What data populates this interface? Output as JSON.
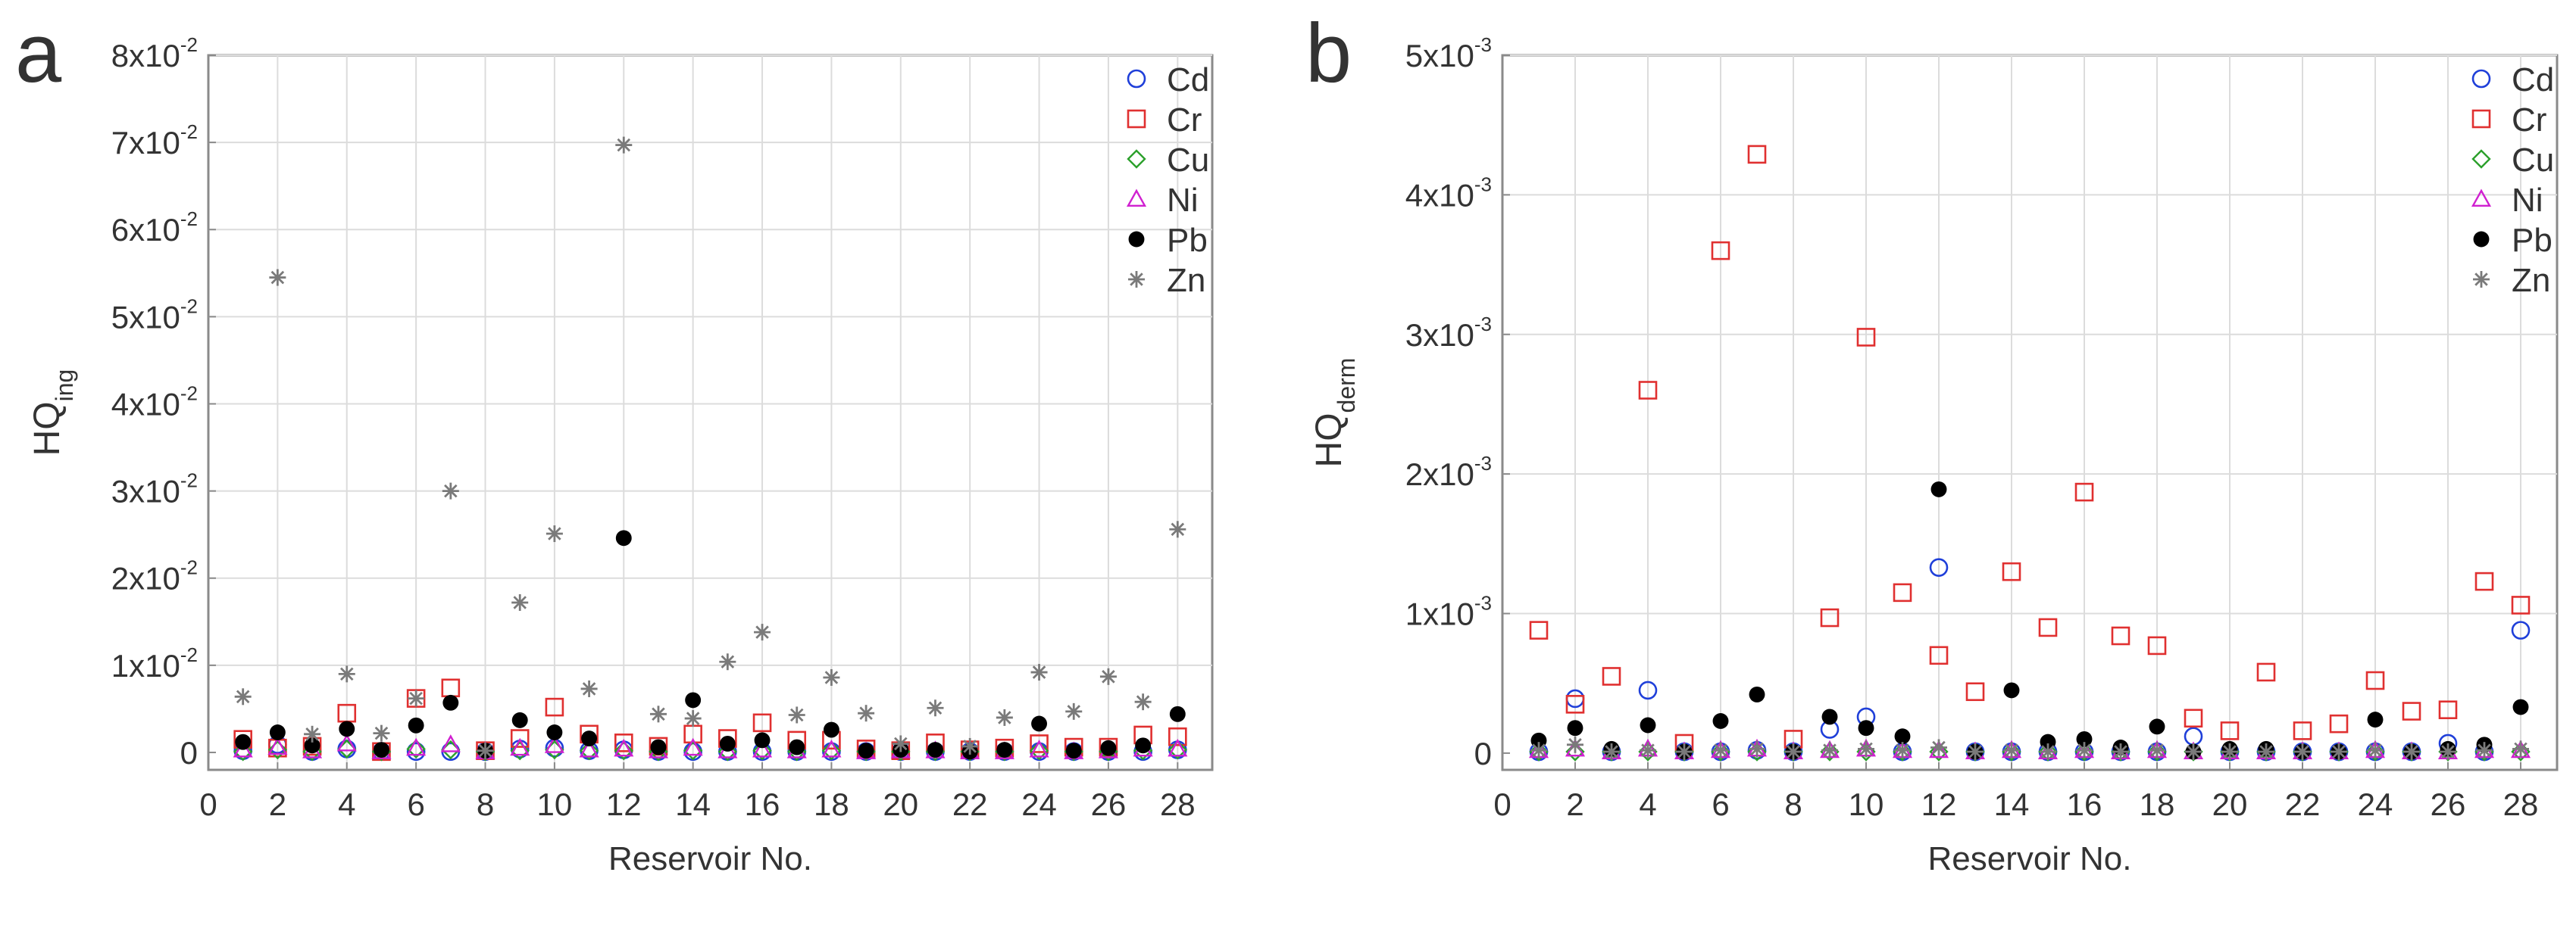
{
  "chart_data": [
    {
      "panel_letter": "a",
      "type": "scatter",
      "xlabel": "Reservoir No.",
      "ylabel_main": "HQ",
      "ylabel_sub": "ing",
      "xlim": [
        0,
        29
      ],
      "ylim": [
        -0.002,
        0.08
      ],
      "xticks": [
        0,
        2,
        4,
        6,
        8,
        10,
        12,
        14,
        16,
        18,
        20,
        22,
        24,
        26,
        28
      ],
      "yticks": [
        {
          "value": 0,
          "mantissa": "0",
          "exp": ""
        },
        {
          "value": 0.01,
          "mantissa": "1x10",
          "exp": "-2"
        },
        {
          "value": 0.02,
          "mantissa": "2x10",
          "exp": "-2"
        },
        {
          "value": 0.03,
          "mantissa": "3x10",
          "exp": "-2"
        },
        {
          "value": 0.04,
          "mantissa": "4x10",
          "exp": "-2"
        },
        {
          "value": 0.05,
          "mantissa": "5x10",
          "exp": "-2"
        },
        {
          "value": 0.06,
          "mantissa": "6x10",
          "exp": "-2"
        },
        {
          "value": 0.07,
          "mantissa": "7x10",
          "exp": "-2"
        },
        {
          "value": 0.08,
          "mantissa": "8x10",
          "exp": "-2"
        }
      ],
      "x": [
        1,
        2,
        3,
        4,
        5,
        6,
        7,
        8,
        9,
        10,
        11,
        12,
        13,
        14,
        15,
        16,
        17,
        18,
        19,
        20,
        21,
        22,
        23,
        24,
        25,
        26,
        27,
        28
      ],
      "series": [
        {
          "name": "Cd",
          "marker": "circle",
          "color": "#1f3fd9",
          "values": [
            0.0002,
            0.0009,
            0.0001,
            0.0004,
            0.0001,
            0.0001,
            0.0001,
            0.0001,
            0.0004,
            0.0005,
            0.0002,
            0.0003,
            0.0001,
            0.0001,
            0.0001,
            0.0001,
            0.0001,
            0.0001,
            0.0001,
            0.0001,
            0.0001,
            0.0001,
            0.0001,
            0.0001,
            0.0001,
            0.0001,
            0.0001,
            0.0003
          ]
        },
        {
          "name": "Cr",
          "marker": "square",
          "color": "#e03030",
          "values": [
            0.0015,
            0.0005,
            0.0007,
            0.0045,
            0.0001,
            0.0062,
            0.0074,
            0.0002,
            0.0016,
            0.0052,
            0.0021,
            0.0011,
            0.0007,
            0.0021,
            0.0016,
            0.0034,
            0.0014,
            0.0014,
            0.0004,
            0.0002,
            0.0011,
            0.0003,
            0.0005,
            0.001,
            0.0006,
            0.0006,
            0.002,
            0.0018
          ]
        },
        {
          "name": "Cu",
          "marker": "diamond",
          "color": "#2ca02c",
          "values": [
            0.0001,
            0.0003,
            0.0001,
            0.0004,
            0.0001,
            0.0004,
            0.0003,
            0.0001,
            0.0002,
            0.0003,
            0.0002,
            0.0002,
            0.0001,
            0.0002,
            0.0001,
            0.0002,
            0.0001,
            0.0002,
            0.0001,
            0.0001,
            0.0001,
            0.0001,
            0.0001,
            0.0002,
            0.0001,
            0.0001,
            0.0002,
            0.0003
          ]
        },
        {
          "name": "Ni",
          "marker": "triangle",
          "color": "#d020d0",
          "values": [
            0.0003,
            0.0006,
            0.0002,
            0.001,
            0.0001,
            0.0005,
            0.0009,
            0.0001,
            0.0005,
            0.0008,
            0.0003,
            0.0004,
            0.0002,
            0.0005,
            0.0002,
            0.0003,
            0.0002,
            0.0003,
            0.0001,
            0.0002,
            0.0002,
            0.0001,
            0.0001,
            0.0003,
            0.0001,
            0.0002,
            0.0004,
            0.0004
          ]
        },
        {
          "name": "Pb",
          "marker": "dot",
          "color": "#000000",
          "values": [
            0.0012,
            0.0023,
            0.0008,
            0.0027,
            0.0003,
            0.0031,
            0.0057,
            0.0002,
            0.0037,
            0.0023,
            0.0016,
            0.0246,
            0.0006,
            0.006,
            0.001,
            0.0014,
            0.0006,
            0.0026,
            0.0002,
            0.0003,
            0.0003,
            0.0001,
            0.0003,
            0.0033,
            0.0002,
            0.0005,
            0.0008,
            0.0044
          ]
        },
        {
          "name": "Zn",
          "marker": "star",
          "color": "#7a7a7a",
          "values": [
            0.0064,
            0.0545,
            0.0021,
            0.009,
            0.0022,
            0.0062,
            0.03,
            0.0002,
            0.0172,
            0.0251,
            0.0073,
            0.0697,
            0.0044,
            0.0039,
            0.0104,
            0.0138,
            0.0043,
            0.0086,
            0.0045,
            0.001,
            0.0051,
            0.0007,
            0.004,
            0.0092,
            0.0047,
            0.0087,
            0.0058,
            0.0256
          ]
        }
      ]
    },
    {
      "panel_letter": "b",
      "type": "scatter",
      "xlabel": "Reservoir No.",
      "ylabel_main": "HQ",
      "ylabel_sub": "derm",
      "xlim": [
        0,
        29
      ],
      "ylim": [
        -0.00012,
        0.005
      ],
      "xticks": [
        0,
        2,
        4,
        6,
        8,
        10,
        12,
        14,
        16,
        18,
        20,
        22,
        24,
        26,
        28
      ],
      "yticks": [
        {
          "value": 0,
          "mantissa": "0",
          "exp": ""
        },
        {
          "value": 0.001,
          "mantissa": "1x10",
          "exp": "-3"
        },
        {
          "value": 0.002,
          "mantissa": "2x10",
          "exp": "-3"
        },
        {
          "value": 0.003,
          "mantissa": "3x10",
          "exp": "-3"
        },
        {
          "value": 0.004,
          "mantissa": "4x10",
          "exp": "-3"
        },
        {
          "value": 0.005,
          "mantissa": "5x10",
          "exp": "-3"
        }
      ],
      "x": [
        1,
        2,
        3,
        4,
        5,
        6,
        7,
        8,
        9,
        10,
        11,
        12,
        13,
        14,
        15,
        16,
        17,
        18,
        19,
        20,
        21,
        22,
        23,
        24,
        25,
        26,
        27,
        28
      ],
      "series": [
        {
          "name": "Cd",
          "marker": "circle",
          "color": "#1f3fd9",
          "values": [
            1e-05,
            0.00039,
            1e-05,
            0.00045,
            1e-05,
            1e-05,
            2e-05,
            1e-05,
            0.00017,
            0.00026,
            1e-05,
            0.00133,
            1e-05,
            1e-05,
            1e-05,
            1e-05,
            1e-05,
            1e-05,
            0.00012,
            1e-05,
            1e-05,
            1e-05,
            1e-05,
            1e-05,
            1e-05,
            7e-05,
            1e-05,
            0.00088
          ]
        },
        {
          "name": "Cr",
          "marker": "square",
          "color": "#e03030",
          "values": [
            0.00088,
            0.00035,
            0.00055,
            0.0026,
            7e-05,
            0.0036,
            0.00429,
            0.0001,
            0.00097,
            0.00298,
            0.00115,
            0.0007,
            0.00044,
            0.0013,
            0.0009,
            0.00187,
            0.00084,
            0.00077,
            0.00025,
            0.00016,
            0.00058,
            0.00016,
            0.00021,
            0.00052,
            0.0003,
            0.00031,
            0.00123,
            0.00106
          ]
        },
        {
          "name": "Cu",
          "marker": "diamond",
          "color": "#2ca02c",
          "values": [
            1e-05,
            1e-05,
            1e-05,
            1e-05,
            1e-05,
            1e-05,
            1e-05,
            1e-05,
            1e-05,
            1e-05,
            1e-05,
            1e-05,
            1e-05,
            1e-05,
            1e-05,
            1e-05,
            1e-05,
            1e-05,
            1e-05,
            1e-05,
            1e-05,
            1e-05,
            1e-05,
            1e-05,
            1e-05,
            1e-05,
            1e-05,
            1e-05
          ]
        },
        {
          "name": "Ni",
          "marker": "triangle",
          "color": "#d020d0",
          "values": [
            2e-05,
            3e-05,
            1e-05,
            3e-05,
            1e-05,
            2e-05,
            3e-05,
            1e-05,
            2e-05,
            3e-05,
            2e-05,
            2e-05,
            1e-05,
            2e-05,
            1e-05,
            2e-05,
            1e-05,
            2e-05,
            1e-05,
            1e-05,
            1e-05,
            1e-05,
            1e-05,
            2e-05,
            1e-05,
            1e-05,
            2e-05,
            2e-05
          ]
        },
        {
          "name": "Pb",
          "marker": "dot",
          "color": "#000000",
          "values": [
            9e-05,
            0.00018,
            3e-05,
            0.0002,
            1e-05,
            0.00023,
            0.00042,
            1e-05,
            0.00026,
            0.00018,
            0.00012,
            0.00189,
            1e-05,
            0.00045,
            8e-05,
            0.0001,
            4e-05,
            0.00019,
            1e-05,
            3e-05,
            3e-05,
            1e-05,
            1e-05,
            0.00024,
            1e-05,
            3e-05,
            6e-05,
            0.00033
          ]
        },
        {
          "name": "Zn",
          "marker": "star",
          "color": "#7a7a7a",
          "values": [
            2e-05,
            6e-05,
            1e-05,
            2e-05,
            1e-05,
            2e-05,
            3e-05,
            1e-05,
            2e-05,
            3e-05,
            2e-05,
            4e-05,
            1e-05,
            2e-05,
            1e-05,
            2e-05,
            1e-05,
            2e-05,
            1e-05,
            1e-05,
            1e-05,
            1e-05,
            1e-05,
            2e-05,
            1e-05,
            1e-05,
            2e-05,
            3e-05
          ]
        }
      ]
    }
  ]
}
